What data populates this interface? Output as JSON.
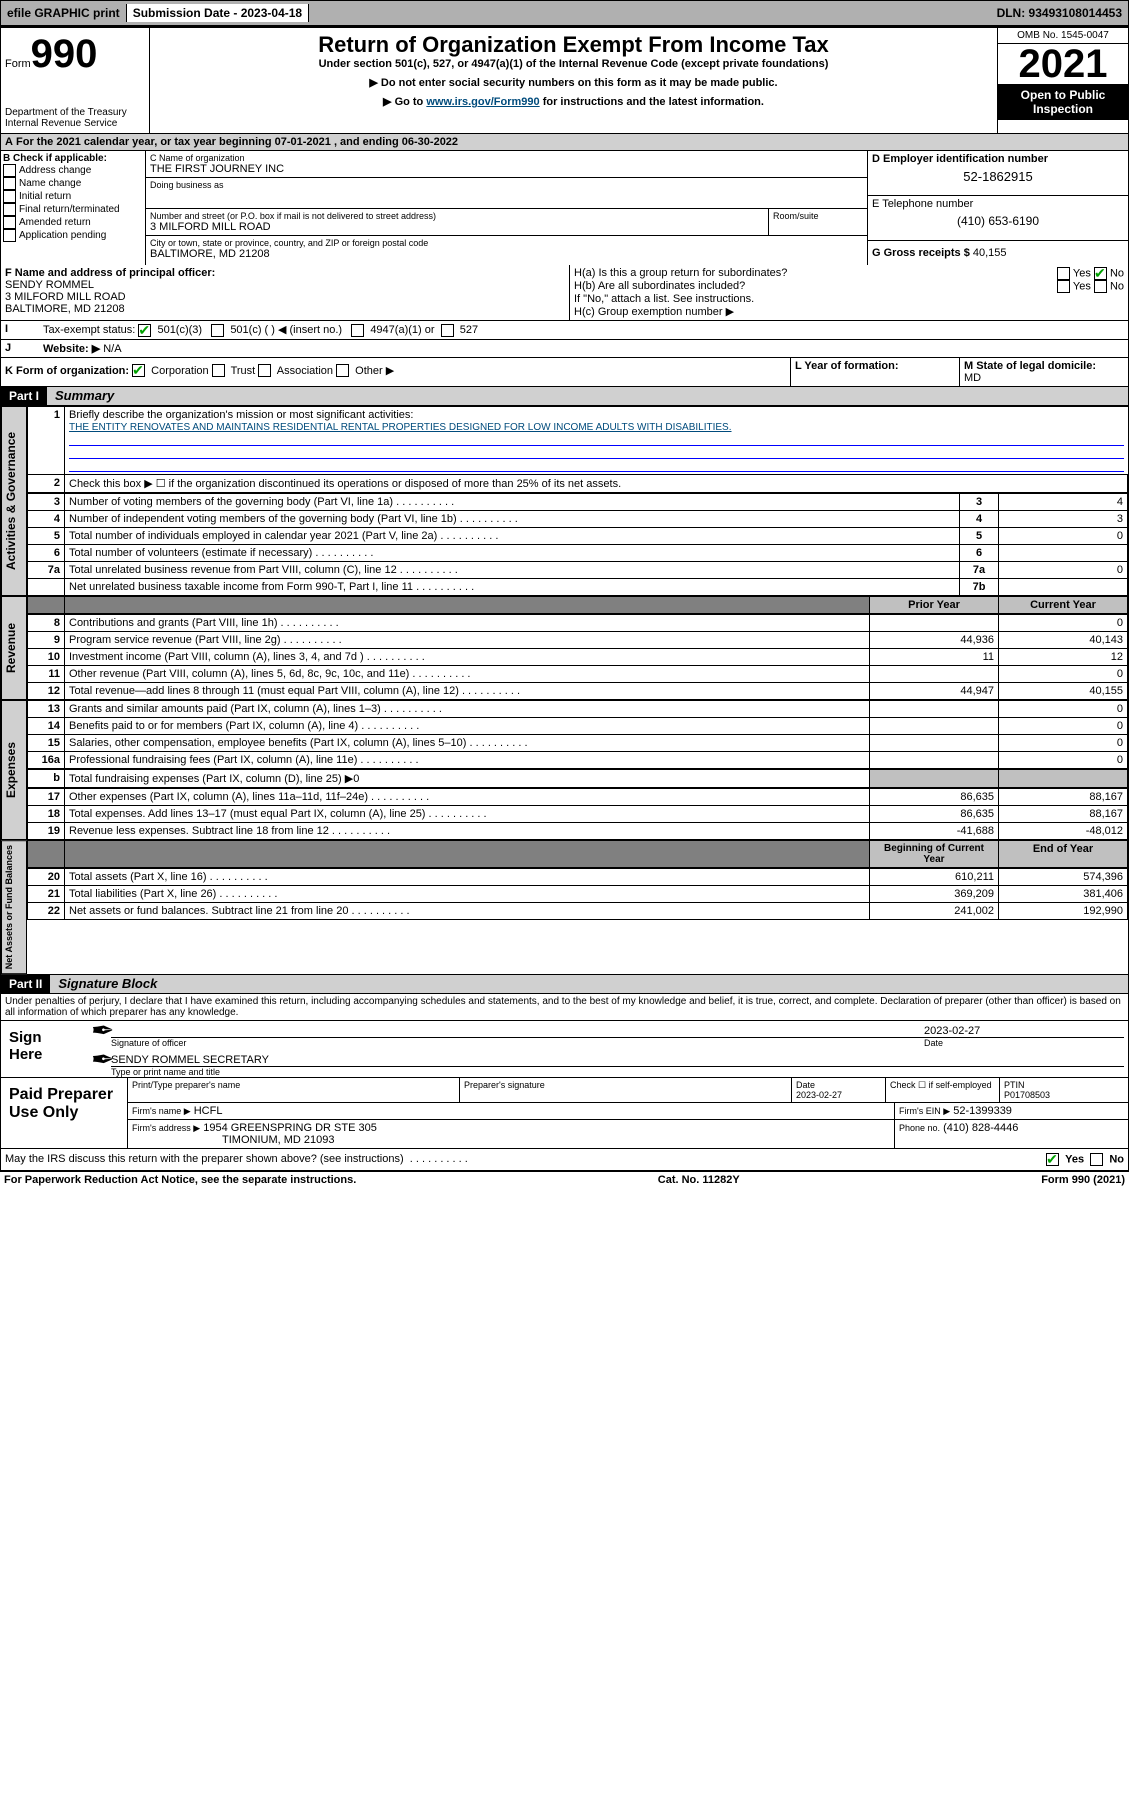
{
  "topbar": {
    "efile": "efile GRAPHIC print",
    "subdate_label": "Submission Date - 2023-04-18",
    "dln": "DLN: 93493108014453"
  },
  "header": {
    "form_small": "Form",
    "form_big": "990",
    "dept": "Department of the Treasury",
    "irs": "Internal Revenue Service",
    "title": "Return of Organization Exempt From Income Tax",
    "sub1": "Under section 501(c), 527, or 4947(a)(1) of the Internal Revenue Code (except private foundations)",
    "sub2": "▶ Do not enter social security numbers on this form as it may be made public.",
    "sub3_pre": "▶ Go to ",
    "sub3_link": "www.irs.gov/Form990",
    "sub3_post": " for instructions and the latest information.",
    "omb": "OMB No. 1545-0047",
    "year": "2021",
    "open": "Open to Public Inspection"
  },
  "a_line": {
    "text": "For the 2021 calendar year, or tax year beginning 07-01-2021  , and ending 06-30-2022"
  },
  "b": {
    "label": "B Check if applicable:",
    "opts": [
      "Address change",
      "Name change",
      "Initial return",
      "Final return/terminated",
      "Amended return",
      "Application pending"
    ]
  },
  "c": {
    "label": "C Name of organization",
    "name": "THE FIRST JOURNEY INC",
    "dba": "Doing business as",
    "street_label": "Number and street (or P.O. box if mail is not delivered to street address)",
    "room": "Room/suite",
    "street": "3 MILFORD MILL ROAD",
    "city_label": "City or town, state or province, country, and ZIP or foreign postal code",
    "city": "BALTIMORE, MD  21208"
  },
  "d": {
    "label": "D Employer identification number",
    "val": "52-1862915"
  },
  "e": {
    "label": "E Telephone number",
    "val": "(410) 653-6190"
  },
  "g": {
    "label": "G Gross receipts $",
    "val": "40,155"
  },
  "f": {
    "label": "F Name and address of principal officer:",
    "name": "SENDY ROMMEL",
    "street": "3 MILFORD MILL ROAD",
    "city": "BALTIMORE, MD  21208"
  },
  "h": {
    "a": "H(a)  Is this a group return for subordinates?",
    "b": "H(b)  Are all subordinates included?",
    "ifno": "If \"No,\" attach a list. See instructions.",
    "c": "H(c)  Group exemption number ▶",
    "yes": "Yes",
    "no": "No"
  },
  "i": {
    "label": "Tax-exempt status:",
    "opts": [
      "501(c)(3)",
      "501(c) (   ) ◀ (insert no.)",
      "4947(a)(1) or",
      "527"
    ]
  },
  "j": {
    "label": "Website: ▶",
    "val": "N/A"
  },
  "k": {
    "label": "K Form of organization:",
    "opts": [
      "Corporation",
      "Trust",
      "Association",
      "Other ▶"
    ]
  },
  "l": {
    "label": "L Year of formation:"
  },
  "m": {
    "label": "M State of legal domicile:",
    "val": "MD"
  },
  "part1": {
    "tag": "Part I",
    "title": "Summary",
    "l1_label": "Briefly describe the organization's mission or most significant activities:",
    "l1_val": "THE ENTITY RENOVATES AND MAINTAINS RESIDENTIAL RENTAL PROPERTIES DESIGNED FOR LOW INCOME ADULTS WITH DISABILITIES.",
    "l2": "Check this box ▶ ☐  if the organization discontinued its operations or disposed of more than 25% of its net assets.",
    "rows_simple": [
      {
        "n": "3",
        "t": "Number of voting members of the governing body (Part VI, line 1a)",
        "box": "3",
        "v": "4"
      },
      {
        "n": "4",
        "t": "Number of independent voting members of the governing body (Part VI, line 1b)",
        "box": "4",
        "v": "3"
      },
      {
        "n": "5",
        "t": "Total number of individuals employed in calendar year 2021 (Part V, line 2a)",
        "box": "5",
        "v": "0"
      },
      {
        "n": "6",
        "t": "Total number of volunteers (estimate if necessary)",
        "box": "6",
        "v": ""
      },
      {
        "n": "7a",
        "t": "Total unrelated business revenue from Part VIII, column (C), line 12",
        "box": "7a",
        "v": "0"
      },
      {
        "n": "",
        "t": "Net unrelated business taxable income from Form 990-T, Part I, line 11",
        "box": "7b",
        "v": ""
      }
    ],
    "col_prior": "Prior Year",
    "col_curr": "Current Year",
    "rows_two": [
      {
        "n": "8",
        "t": "Contributions and grants (Part VIII, line 1h)",
        "p": "",
        "c": "0"
      },
      {
        "n": "9",
        "t": "Program service revenue (Part VIII, line 2g)",
        "p": "44,936",
        "c": "40,143"
      },
      {
        "n": "10",
        "t": "Investment income (Part VIII, column (A), lines 3, 4, and 7d )",
        "p": "11",
        "c": "12"
      },
      {
        "n": "11",
        "t": "Other revenue (Part VIII, column (A), lines 5, 6d, 8c, 9c, 10c, and 11e)",
        "p": "",
        "c": "0"
      },
      {
        "n": "12",
        "t": "Total revenue—add lines 8 through 11 (must equal Part VIII, column (A), line 12)",
        "p": "44,947",
        "c": "40,155"
      },
      {
        "n": "13",
        "t": "Grants and similar amounts paid (Part IX, column (A), lines 1–3)",
        "p": "",
        "c": "0"
      },
      {
        "n": "14",
        "t": "Benefits paid to or for members (Part IX, column (A), line 4)",
        "p": "",
        "c": "0"
      },
      {
        "n": "15",
        "t": "Salaries, other compensation, employee benefits (Part IX, column (A), lines 5–10)",
        "p": "",
        "c": "0"
      },
      {
        "n": "16a",
        "t": "Professional fundraising fees (Part IX, column (A), line 11e)",
        "p": "",
        "c": "0"
      }
    ],
    "l16b": "Total fundraising expenses (Part IX, column (D), line 25) ▶0",
    "rows_two_b": [
      {
        "n": "17",
        "t": "Other expenses (Part IX, column (A), lines 11a–11d, 11f–24e)",
        "p": "86,635",
        "c": "88,167"
      },
      {
        "n": "18",
        "t": "Total expenses. Add lines 13–17 (must equal Part IX, column (A), line 25)",
        "p": "86,635",
        "c": "88,167"
      },
      {
        "n": "19",
        "t": "Revenue less expenses. Subtract line 18 from line 12",
        "p": "-41,688",
        "c": "-48,012"
      }
    ],
    "col_beg": "Beginning of Current Year",
    "col_end": "End of Year",
    "rows_na": [
      {
        "n": "20",
        "t": "Total assets (Part X, line 16)",
        "p": "610,211",
        "c": "574,396"
      },
      {
        "n": "21",
        "t": "Total liabilities (Part X, line 26)",
        "p": "369,209",
        "c": "381,406"
      },
      {
        "n": "22",
        "t": "Net assets or fund balances. Subtract line 21 from line 20",
        "p": "241,002",
        "c": "192,990"
      }
    ]
  },
  "vtabs": {
    "gov": "Activities & Governance",
    "rev": "Revenue",
    "exp": "Expenses",
    "na": "Net Assets or Fund Balances"
  },
  "part2": {
    "tag": "Part II",
    "title": "Signature Block",
    "decl": "Under penalties of perjury, I declare that I have examined this return, including accompanying schedules and statements, and to the best of my knowledge and belief, it is true, correct, and complete. Declaration of preparer (other than officer) is based on all information of which preparer has any knowledge."
  },
  "sign": {
    "here": "Sign Here",
    "sig_officer": "Signature of officer",
    "date": "Date",
    "date_val": "2023-02-27",
    "name": "SENDY ROMMEL SECRETARY",
    "type": "Type or print name and title"
  },
  "paid": {
    "label": "Paid Preparer Use Only",
    "col1": "Print/Type preparer's name",
    "col2": "Preparer's signature",
    "col3": "Date",
    "col3v": "2023-02-27",
    "col4": "Check ☐ if self-employed",
    "col5": "PTIN",
    "col5v": "P01708503",
    "firm_name_l": "Firm's name    ▶",
    "firm_name": "HCFL",
    "firm_ein_l": "Firm's EIN ▶",
    "firm_ein": "52-1399339",
    "firm_addr_l": "Firm's address ▶",
    "firm_addr1": "1954 GREENSPRING DR STE 305",
    "firm_addr2": "TIMONIUM, MD  21093",
    "phone_l": "Phone no.",
    "phone": "(410) 828-4446"
  },
  "may": {
    "text": "May the IRS discuss this return with the preparer shown above? (see instructions)",
    "yes": "Yes",
    "no": "No"
  },
  "footer": {
    "left": "For Paperwork Reduction Act Notice, see the separate instructions.",
    "mid": "Cat. No. 11282Y",
    "right": "Form 990 (2021)"
  }
}
